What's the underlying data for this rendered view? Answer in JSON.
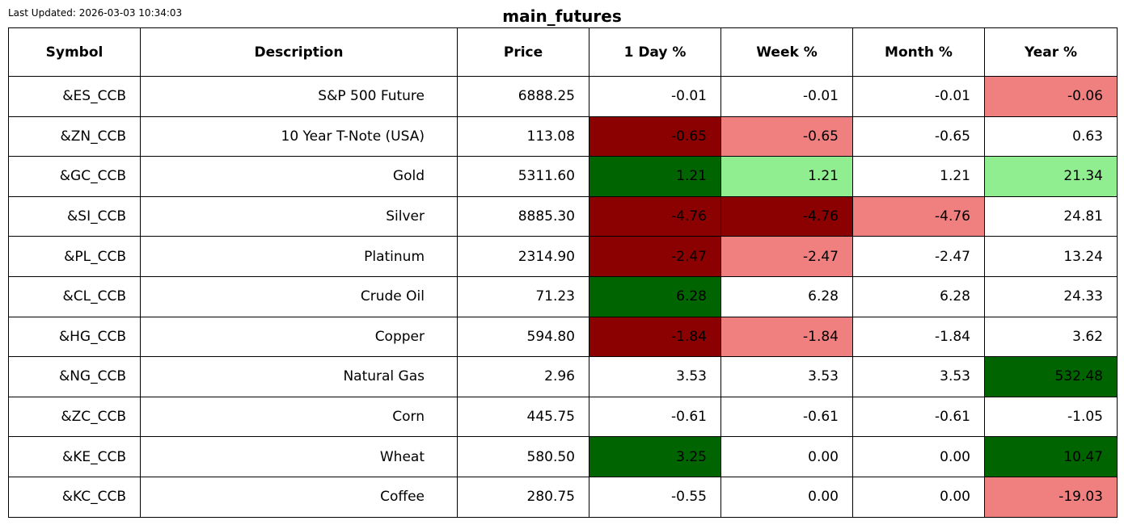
{
  "header": {
    "last_updated": "Last Updated: 2026-03-03 10:34:03",
    "title": "main_futures"
  },
  "colors": {
    "dark_red": "#8b0000",
    "light_red": "#f08080",
    "dark_green": "#006400",
    "light_green": "#90ee90",
    "neutral": "#ffffff"
  },
  "chart_data": {
    "type": "table",
    "title": "main_futures",
    "columns": [
      "Symbol",
      "Description",
      "Price",
      "1 Day %",
      "Week %",
      "Month %",
      "Year %"
    ],
    "rows": [
      {
        "symbol": "&ES_CCB",
        "description": "S&P 500 Future",
        "price": "6888.25",
        "cells": [
          {
            "value": "-0.01",
            "color": "#ffffff"
          },
          {
            "value": "-0.01",
            "color": "#ffffff"
          },
          {
            "value": "-0.01",
            "color": "#ffffff"
          },
          {
            "value": "-0.06",
            "color": "#f08080"
          }
        ]
      },
      {
        "symbol": "&ZN_CCB",
        "description": "10 Year T-Note (USA)",
        "price": "113.08",
        "cells": [
          {
            "value": "-0.65",
            "color": "#8b0000"
          },
          {
            "value": "-0.65",
            "color": "#f08080"
          },
          {
            "value": "-0.65",
            "color": "#ffffff"
          },
          {
            "value": "0.63",
            "color": "#ffffff"
          }
        ]
      },
      {
        "symbol": "&GC_CCB",
        "description": "Gold",
        "price": "5311.60",
        "cells": [
          {
            "value": "1.21",
            "color": "#006400"
          },
          {
            "value": "1.21",
            "color": "#90ee90"
          },
          {
            "value": "1.21",
            "color": "#ffffff"
          },
          {
            "value": "21.34",
            "color": "#90ee90"
          }
        ]
      },
      {
        "symbol": "&SI_CCB",
        "description": "Silver",
        "price": "8885.30",
        "cells": [
          {
            "value": "-4.76",
            "color": "#8b0000"
          },
          {
            "value": "-4.76",
            "color": "#8b0000"
          },
          {
            "value": "-4.76",
            "color": "#f08080"
          },
          {
            "value": "24.81",
            "color": "#ffffff"
          }
        ]
      },
      {
        "symbol": "&PL_CCB",
        "description": "Platinum",
        "price": "2314.90",
        "cells": [
          {
            "value": "-2.47",
            "color": "#8b0000"
          },
          {
            "value": "-2.47",
            "color": "#f08080"
          },
          {
            "value": "-2.47",
            "color": "#ffffff"
          },
          {
            "value": "13.24",
            "color": "#ffffff"
          }
        ]
      },
      {
        "symbol": "&CL_CCB",
        "description": "Crude Oil",
        "price": "71.23",
        "cells": [
          {
            "value": "6.28",
            "color": "#006400"
          },
          {
            "value": "6.28",
            "color": "#ffffff"
          },
          {
            "value": "6.28",
            "color": "#ffffff"
          },
          {
            "value": "24.33",
            "color": "#ffffff"
          }
        ]
      },
      {
        "symbol": "&HG_CCB",
        "description": "Copper",
        "price": "594.80",
        "cells": [
          {
            "value": "-1.84",
            "color": "#8b0000"
          },
          {
            "value": "-1.84",
            "color": "#f08080"
          },
          {
            "value": "-1.84",
            "color": "#ffffff"
          },
          {
            "value": "3.62",
            "color": "#ffffff"
          }
        ]
      },
      {
        "symbol": "&NG_CCB",
        "description": "Natural Gas",
        "price": "2.96",
        "cells": [
          {
            "value": "3.53",
            "color": "#ffffff"
          },
          {
            "value": "3.53",
            "color": "#ffffff"
          },
          {
            "value": "3.53",
            "color": "#ffffff"
          },
          {
            "value": "532.48",
            "color": "#006400"
          }
        ]
      },
      {
        "symbol": "&ZC_CCB",
        "description": "Corn",
        "price": "445.75",
        "cells": [
          {
            "value": "-0.61",
            "color": "#ffffff"
          },
          {
            "value": "-0.61",
            "color": "#ffffff"
          },
          {
            "value": "-0.61",
            "color": "#ffffff"
          },
          {
            "value": "-1.05",
            "color": "#ffffff"
          }
        ]
      },
      {
        "symbol": "&KE_CCB",
        "description": "Wheat",
        "price": "580.50",
        "cells": [
          {
            "value": "3.25",
            "color": "#006400"
          },
          {
            "value": "0.00",
            "color": "#ffffff"
          },
          {
            "value": "0.00",
            "color": "#ffffff"
          },
          {
            "value": "10.47",
            "color": "#006400"
          }
        ]
      },
      {
        "symbol": "&KC_CCB",
        "description": "Coffee",
        "price": "280.75",
        "cells": [
          {
            "value": "-0.55",
            "color": "#ffffff"
          },
          {
            "value": "0.00",
            "color": "#ffffff"
          },
          {
            "value": "0.00",
            "color": "#ffffff"
          },
          {
            "value": "-19.03",
            "color": "#f08080"
          }
        ]
      }
    ]
  }
}
